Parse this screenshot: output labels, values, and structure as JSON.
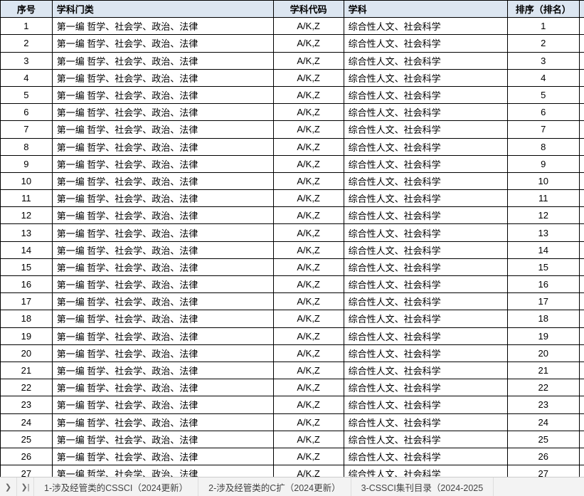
{
  "table": {
    "headers": [
      "序号",
      "学科门类",
      "学科代码",
      "学科",
      "排序（排名）"
    ],
    "category_value": "第一编 哲学、社会学、政治、法律",
    "code_value": "A/K,Z",
    "subject_value": "综合性人文、社会科学",
    "row_count": 27,
    "colors": {
      "header_bg": "#dce6f1",
      "border": "#000000"
    }
  },
  "tabs": {
    "items": [
      "1-涉及经管类的CSSCI（2024更新）",
      "2-涉及经管类的C扩（2024更新）",
      "3-CSSCI集刊目录（2024-2025"
    ],
    "active_index": -1
  }
}
